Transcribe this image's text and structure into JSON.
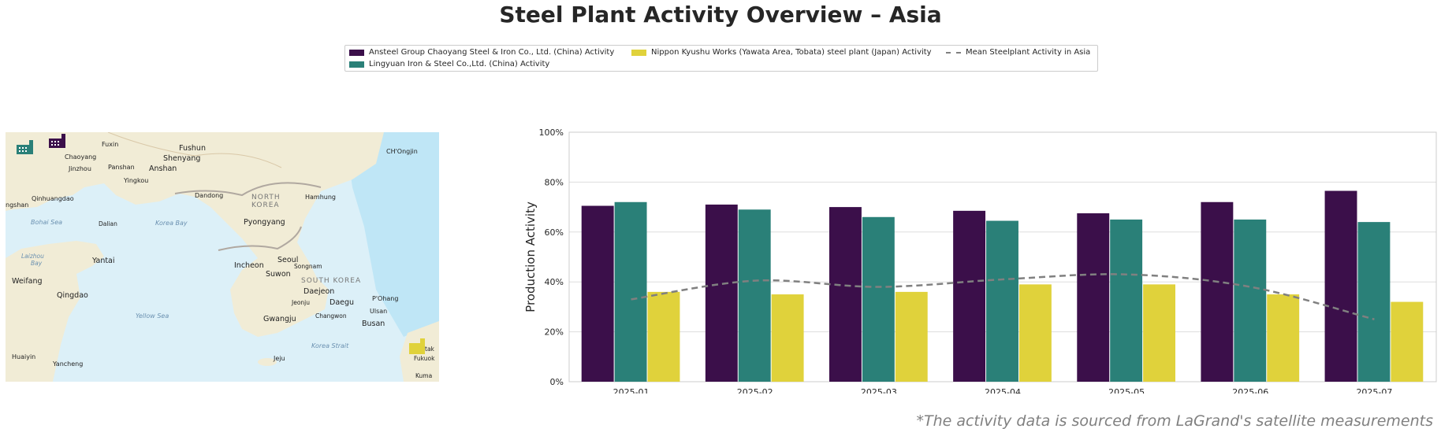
{
  "title": "Steel Plant Activity Overview – Asia",
  "note": "*The activity data is sourced from LaGrand's satellite measurements",
  "legend": [
    {
      "label": "Ansteel Group Chaoyang Steel & Iron Co., Ltd. (China) Activity",
      "color": "#3b0f4a",
      "kind": "bar"
    },
    {
      "label": "Lingyuan Iron & Steel Co.,Ltd. (China) Activity",
      "color": "#2a8078",
      "kind": "bar"
    },
    {
      "label": "Nippon Kyushu Works (Yawata Area, Tobata) steel plant (Japan) Activity",
      "color": "#e0d23b",
      "kind": "bar"
    },
    {
      "label": "Mean Steelplant Activity in Asia",
      "color": "#808080",
      "kind": "dashed-line"
    }
  ],
  "map": {
    "land_color": "#f1ecd6",
    "sea_color": "#dcf0f8",
    "places": [
      {
        "name": "Fuxin",
        "size": "small"
      },
      {
        "name": "Fushun",
        "size": "big"
      },
      {
        "name": "Chaoyang",
        "size": "small"
      },
      {
        "name": "Shenyang",
        "size": "big"
      },
      {
        "name": "CH'Ongjin",
        "size": "small"
      },
      {
        "name": "Jinzhou",
        "size": "small"
      },
      {
        "name": "Panshan",
        "size": "small"
      },
      {
        "name": "Anshan",
        "size": "big"
      },
      {
        "name": "Yingkou",
        "size": "small"
      },
      {
        "name": "Qinhuangdao",
        "size": "small"
      },
      {
        "name": "Dandong",
        "size": "small"
      },
      {
        "name": "NORTH",
        "size": "region"
      },
      {
        "name": "KOREA",
        "size": "region"
      },
      {
        "name": "Hamhung",
        "size": "small"
      },
      {
        "name": "ngshan",
        "size": "small"
      },
      {
        "name": "Bohai Sea",
        "size": "water"
      },
      {
        "name": "Dalian",
        "size": "small"
      },
      {
        "name": "Korea Bay",
        "size": "water"
      },
      {
        "name": "Pyongyang",
        "size": "big"
      },
      {
        "name": "Laizhou",
        "size": "water"
      },
      {
        "name": "Bay",
        "size": "water"
      },
      {
        "name": "Yantai",
        "size": "big"
      },
      {
        "name": "Seoul",
        "size": "big"
      },
      {
        "name": "Incheon",
        "size": "big"
      },
      {
        "name": "Songnam",
        "size": "small"
      },
      {
        "name": "Suwon",
        "size": "big"
      },
      {
        "name": "Weifang",
        "size": "big"
      },
      {
        "name": "SOUTH KOREA",
        "size": "region"
      },
      {
        "name": "Qingdao",
        "size": "big"
      },
      {
        "name": "Daejeon",
        "size": "big"
      },
      {
        "name": "Jeonju",
        "size": "small"
      },
      {
        "name": "Daegu",
        "size": "big"
      },
      {
        "name": "P'Ohang",
        "size": "small"
      },
      {
        "name": "Ulsan",
        "size": "small"
      },
      {
        "name": "Yellow Sea",
        "size": "water"
      },
      {
        "name": "Gwangju",
        "size": "big"
      },
      {
        "name": "Changwon",
        "size": "small"
      },
      {
        "name": "Busan",
        "size": "big"
      },
      {
        "name": "Korea Strait",
        "size": "water"
      },
      {
        "name": "Huaiyin",
        "size": "small"
      },
      {
        "name": "Jeju",
        "size": "small"
      },
      {
        "name": "Kitak",
        "size": "small"
      },
      {
        "name": "Fukuok",
        "size": "small"
      },
      {
        "name": "Yancheng",
        "size": "small"
      },
      {
        "name": "Kuma",
        "size": "small"
      }
    ],
    "markers": [
      {
        "plant": "Lingyuan Iron & Steel Co.,Ltd.",
        "icon": "factory-icon",
        "color": "#2a8078"
      },
      {
        "plant": "Ansteel Group Chaoyang Steel & Iron Co., Ltd.",
        "icon": "factory-icon",
        "color": "#3b0f4a"
      },
      {
        "plant": "Nippon Kyushu Works",
        "icon": "factory-icon",
        "color": "#e0d23b"
      }
    ]
  },
  "chart_data": {
    "type": "bar",
    "categories": [
      "2025-01",
      "2025-02",
      "2025-03",
      "2025-04",
      "2025-05",
      "2025-06",
      "2025-07"
    ],
    "series": [
      {
        "name": "Ansteel Group Chaoyang Steel & Iron Co., Ltd. (China) Activity",
        "color": "#3b0f4a",
        "values": [
          70.5,
          71,
          70,
          68.5,
          67.5,
          72,
          76.5
        ]
      },
      {
        "name": "Lingyuan Iron & Steel Co.,Ltd. (China) Activity",
        "color": "#2a8078",
        "values": [
          72,
          69,
          66,
          64.5,
          65,
          65,
          64
        ]
      },
      {
        "name": "Nippon Kyushu Works (Yawata Area, Tobata) steel plant (Japan) Activity",
        "color": "#e0d23b",
        "values": [
          36,
          35,
          36,
          39,
          39,
          35,
          32
        ]
      }
    ],
    "line": {
      "name": "Mean Steelplant Activity in Asia",
      "color": "#808080",
      "style": "dashed",
      "values": [
        33,
        40.5,
        38,
        41,
        43,
        38,
        25
      ]
    },
    "ylabel": "Production Activity",
    "xlabel": "",
    "ylim": [
      0,
      100
    ],
    "yticks": [
      0,
      20,
      40,
      60,
      80,
      100
    ],
    "ytick_labels": [
      "0%",
      "20%",
      "40%",
      "60%",
      "80%",
      "100%"
    ],
    "grid": true,
    "legend_position": "top-center"
  }
}
